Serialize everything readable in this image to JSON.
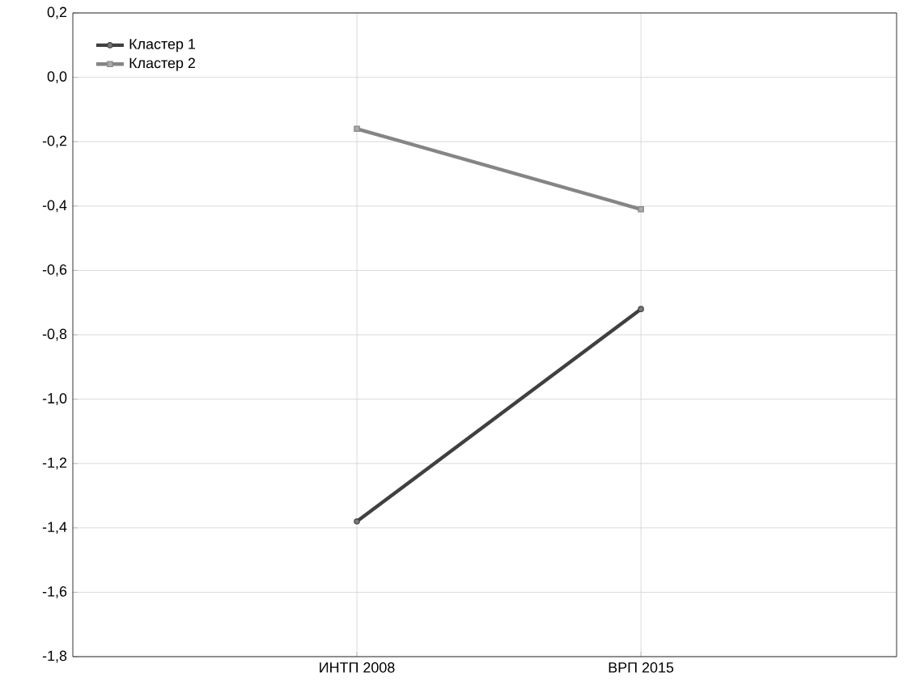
{
  "chart_data": {
    "type": "line",
    "categories": [
      "ИНТП 2008",
      "ВРП 2015"
    ],
    "series": [
      {
        "name": "Кластер  1",
        "color": "#404040",
        "marker": "circle",
        "values": [
          -1.38,
          -0.72
        ]
      },
      {
        "name": "Кластер  2",
        "color": "#858585",
        "marker": "square",
        "values": [
          -0.16,
          -0.41
        ]
      }
    ],
    "ylim": [
      -1.8,
      0.2
    ],
    "yticks": [
      {
        "value": -1.8,
        "label": "-1,8"
      },
      {
        "value": -1.6,
        "label": "-1,6"
      },
      {
        "value": -1.4,
        "label": "-1,4"
      },
      {
        "value": -1.2,
        "label": "-1,2"
      },
      {
        "value": -1.0,
        "label": "-1,0"
      },
      {
        "value": -0.8,
        "label": "-0,8"
      },
      {
        "value": -0.6,
        "label": "-0,6"
      },
      {
        "value": -0.4,
        "label": "-0,4"
      },
      {
        "value": -0.2,
        "label": "-0,2"
      },
      {
        "value": 0.0,
        "label": "0,0"
      },
      {
        "value": 0.2,
        "label": "0,2"
      }
    ],
    "grid": true,
    "legend": "top left",
    "line_style": "solid"
  }
}
